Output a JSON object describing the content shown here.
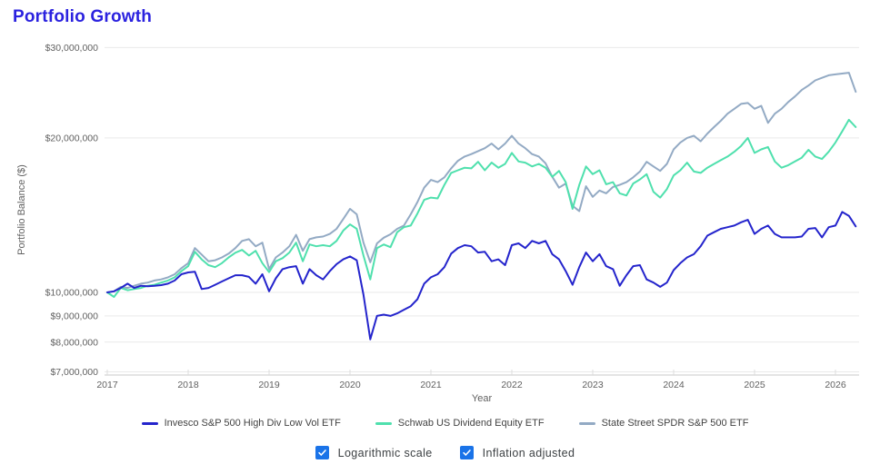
{
  "title": "Portfolio Growth",
  "colors": {
    "title": "#2b22df",
    "checkbox": "#1a73e8",
    "axis_text": "#616161",
    "legend_text": "#424242",
    "gridline": "#e9e9e9",
    "axis_line": "#c9c9c9",
    "tick_mark": "#dddddd"
  },
  "controls": {
    "checkboxes": [
      {
        "label": "Logarithmic scale",
        "checked": true
      },
      {
        "label": "Inflation adjusted",
        "checked": true
      }
    ]
  },
  "chart_data": {
    "type": "line",
    "title": "Portfolio Growth",
    "xlabel": "Year",
    "ylabel": "Portfolio Balance ($)",
    "y_scale": "logarithmic",
    "grid": "horizontal-only",
    "legend_position": "bottom-center",
    "x_ticks": [
      2017,
      2018,
      2019,
      2020,
      2021,
      2022,
      2023,
      2024,
      2025,
      2026
    ],
    "y_ticks": [
      {
        "label": "$30,000,000",
        "value": 30000000
      },
      {
        "label": "$20,000,000",
        "value": 20000000
      },
      {
        "label": "$10,000,000",
        "value": 10000000
      },
      {
        "label": "$9,000,000",
        "value": 9000000
      },
      {
        "label": "$8,000,000",
        "value": 8000000
      },
      {
        "label": "$7,000,000",
        "value": 7000000
      }
    ],
    "ylim": [
      7000000,
      30000000
    ],
    "x_start_year": 2017.0,
    "x_end_year": 2026.25,
    "sampling": "monthly",
    "value_unit": "USD millions",
    "series": [
      {
        "name": "Invesco S&P 500 High Div Low Vol ETF",
        "color": "#2424cc",
        "values": [
          10.0,
          10.05,
          10.2,
          10.4,
          10.2,
          10.3,
          10.28,
          10.3,
          10.33,
          10.4,
          10.55,
          10.85,
          10.94,
          10.97,
          10.15,
          10.2,
          10.35,
          10.5,
          10.65,
          10.8,
          10.8,
          10.72,
          10.4,
          10.85,
          10.05,
          10.65,
          11.1,
          11.2,
          11.25,
          10.4,
          11.1,
          10.8,
          10.6,
          11.0,
          11.35,
          11.6,
          11.75,
          11.55,
          9.9,
          8.1,
          9.0,
          9.05,
          9.0,
          9.1,
          9.25,
          9.4,
          9.7,
          10.4,
          10.7,
          10.85,
          11.2,
          11.9,
          12.2,
          12.36,
          12.3,
          11.96,
          12.0,
          11.5,
          11.6,
          11.3,
          12.36,
          12.46,
          12.2,
          12.6,
          12.46,
          12.6,
          11.87,
          11.6,
          11.0,
          10.35,
          11.2,
          11.96,
          11.5,
          11.87,
          11.25,
          11.1,
          10.3,
          10.8,
          11.25,
          11.3,
          10.6,
          10.45,
          10.25,
          10.45,
          11.05,
          11.4,
          11.7,
          11.87,
          12.3,
          12.9,
          13.1,
          13.3,
          13.4,
          13.5,
          13.7,
          13.85,
          13.0,
          13.3,
          13.5,
          13.0,
          12.8,
          12.8,
          12.8,
          12.85,
          13.3,
          13.35,
          12.8,
          13.4,
          13.5,
          14.35,
          14.1,
          13.45
        ]
      },
      {
        "name": "Schwab US Dividend Equity ETF",
        "color": "#4fe0ad",
        "values": [
          10.0,
          9.8,
          10.2,
          10.1,
          10.15,
          10.2,
          10.3,
          10.35,
          10.45,
          10.55,
          10.7,
          11.0,
          11.25,
          12.0,
          11.6,
          11.3,
          11.2,
          11.4,
          11.7,
          11.95,
          12.1,
          11.8,
          12.05,
          11.4,
          10.95,
          11.5,
          11.66,
          11.96,
          12.5,
          11.5,
          12.4,
          12.3,
          12.36,
          12.3,
          12.6,
          13.2,
          13.57,
          13.3,
          11.8,
          10.6,
          12.2,
          12.4,
          12.25,
          13.1,
          13.4,
          13.5,
          14.25,
          15.15,
          15.3,
          15.25,
          16.2,
          17.1,
          17.3,
          17.5,
          17.45,
          17.97,
          17.3,
          17.9,
          17.5,
          17.8,
          18.7,
          18.0,
          17.9,
          17.6,
          17.8,
          17.5,
          16.8,
          17.25,
          16.4,
          14.55,
          16.2,
          17.6,
          17.0,
          17.3,
          16.25,
          16.4,
          15.6,
          15.45,
          16.3,
          16.6,
          17.0,
          15.7,
          15.3,
          15.9,
          16.9,
          17.3,
          17.9,
          17.2,
          17.1,
          17.5,
          17.8,
          18.1,
          18.4,
          18.8,
          19.3,
          20.0,
          18.7,
          19.0,
          19.2,
          18.0,
          17.5,
          17.7,
          18.0,
          18.3,
          18.96,
          18.4,
          18.2,
          18.8,
          19.6,
          20.6,
          21.7,
          21.0
        ]
      },
      {
        "name": "State Street SPDR S&P 500 ETF",
        "color": "#93aac4",
        "values": [
          10.0,
          10.05,
          10.25,
          10.2,
          10.3,
          10.4,
          10.45,
          10.55,
          10.6,
          10.7,
          10.85,
          11.15,
          11.4,
          12.2,
          11.85,
          11.5,
          11.55,
          11.7,
          11.9,
          12.2,
          12.6,
          12.7,
          12.3,
          12.5,
          11.1,
          11.7,
          11.96,
          12.3,
          12.95,
          12.05,
          12.7,
          12.8,
          12.85,
          13.0,
          13.3,
          13.9,
          14.55,
          14.2,
          12.5,
          11.45,
          12.46,
          12.78,
          12.98,
          13.3,
          13.5,
          14.2,
          15.0,
          16.0,
          16.57,
          16.4,
          16.76,
          17.45,
          18.05,
          18.4,
          18.6,
          18.85,
          19.1,
          19.5,
          19.0,
          19.5,
          20.2,
          19.5,
          19.1,
          18.6,
          18.4,
          17.85,
          16.8,
          16.0,
          16.3,
          14.75,
          14.4,
          16.1,
          15.35,
          15.8,
          15.6,
          16.05,
          16.2,
          16.4,
          16.76,
          17.2,
          17.97,
          17.6,
          17.25,
          17.8,
          19.0,
          19.6,
          20.0,
          20.2,
          19.7,
          20.4,
          21.0,
          21.6,
          22.3,
          22.8,
          23.3,
          23.4,
          22.8,
          23.1,
          21.4,
          22.3,
          22.8,
          23.5,
          24.1,
          24.8,
          25.3,
          25.9,
          26.2,
          26.5,
          26.6,
          26.7,
          26.8,
          24.6
        ]
      }
    ]
  }
}
